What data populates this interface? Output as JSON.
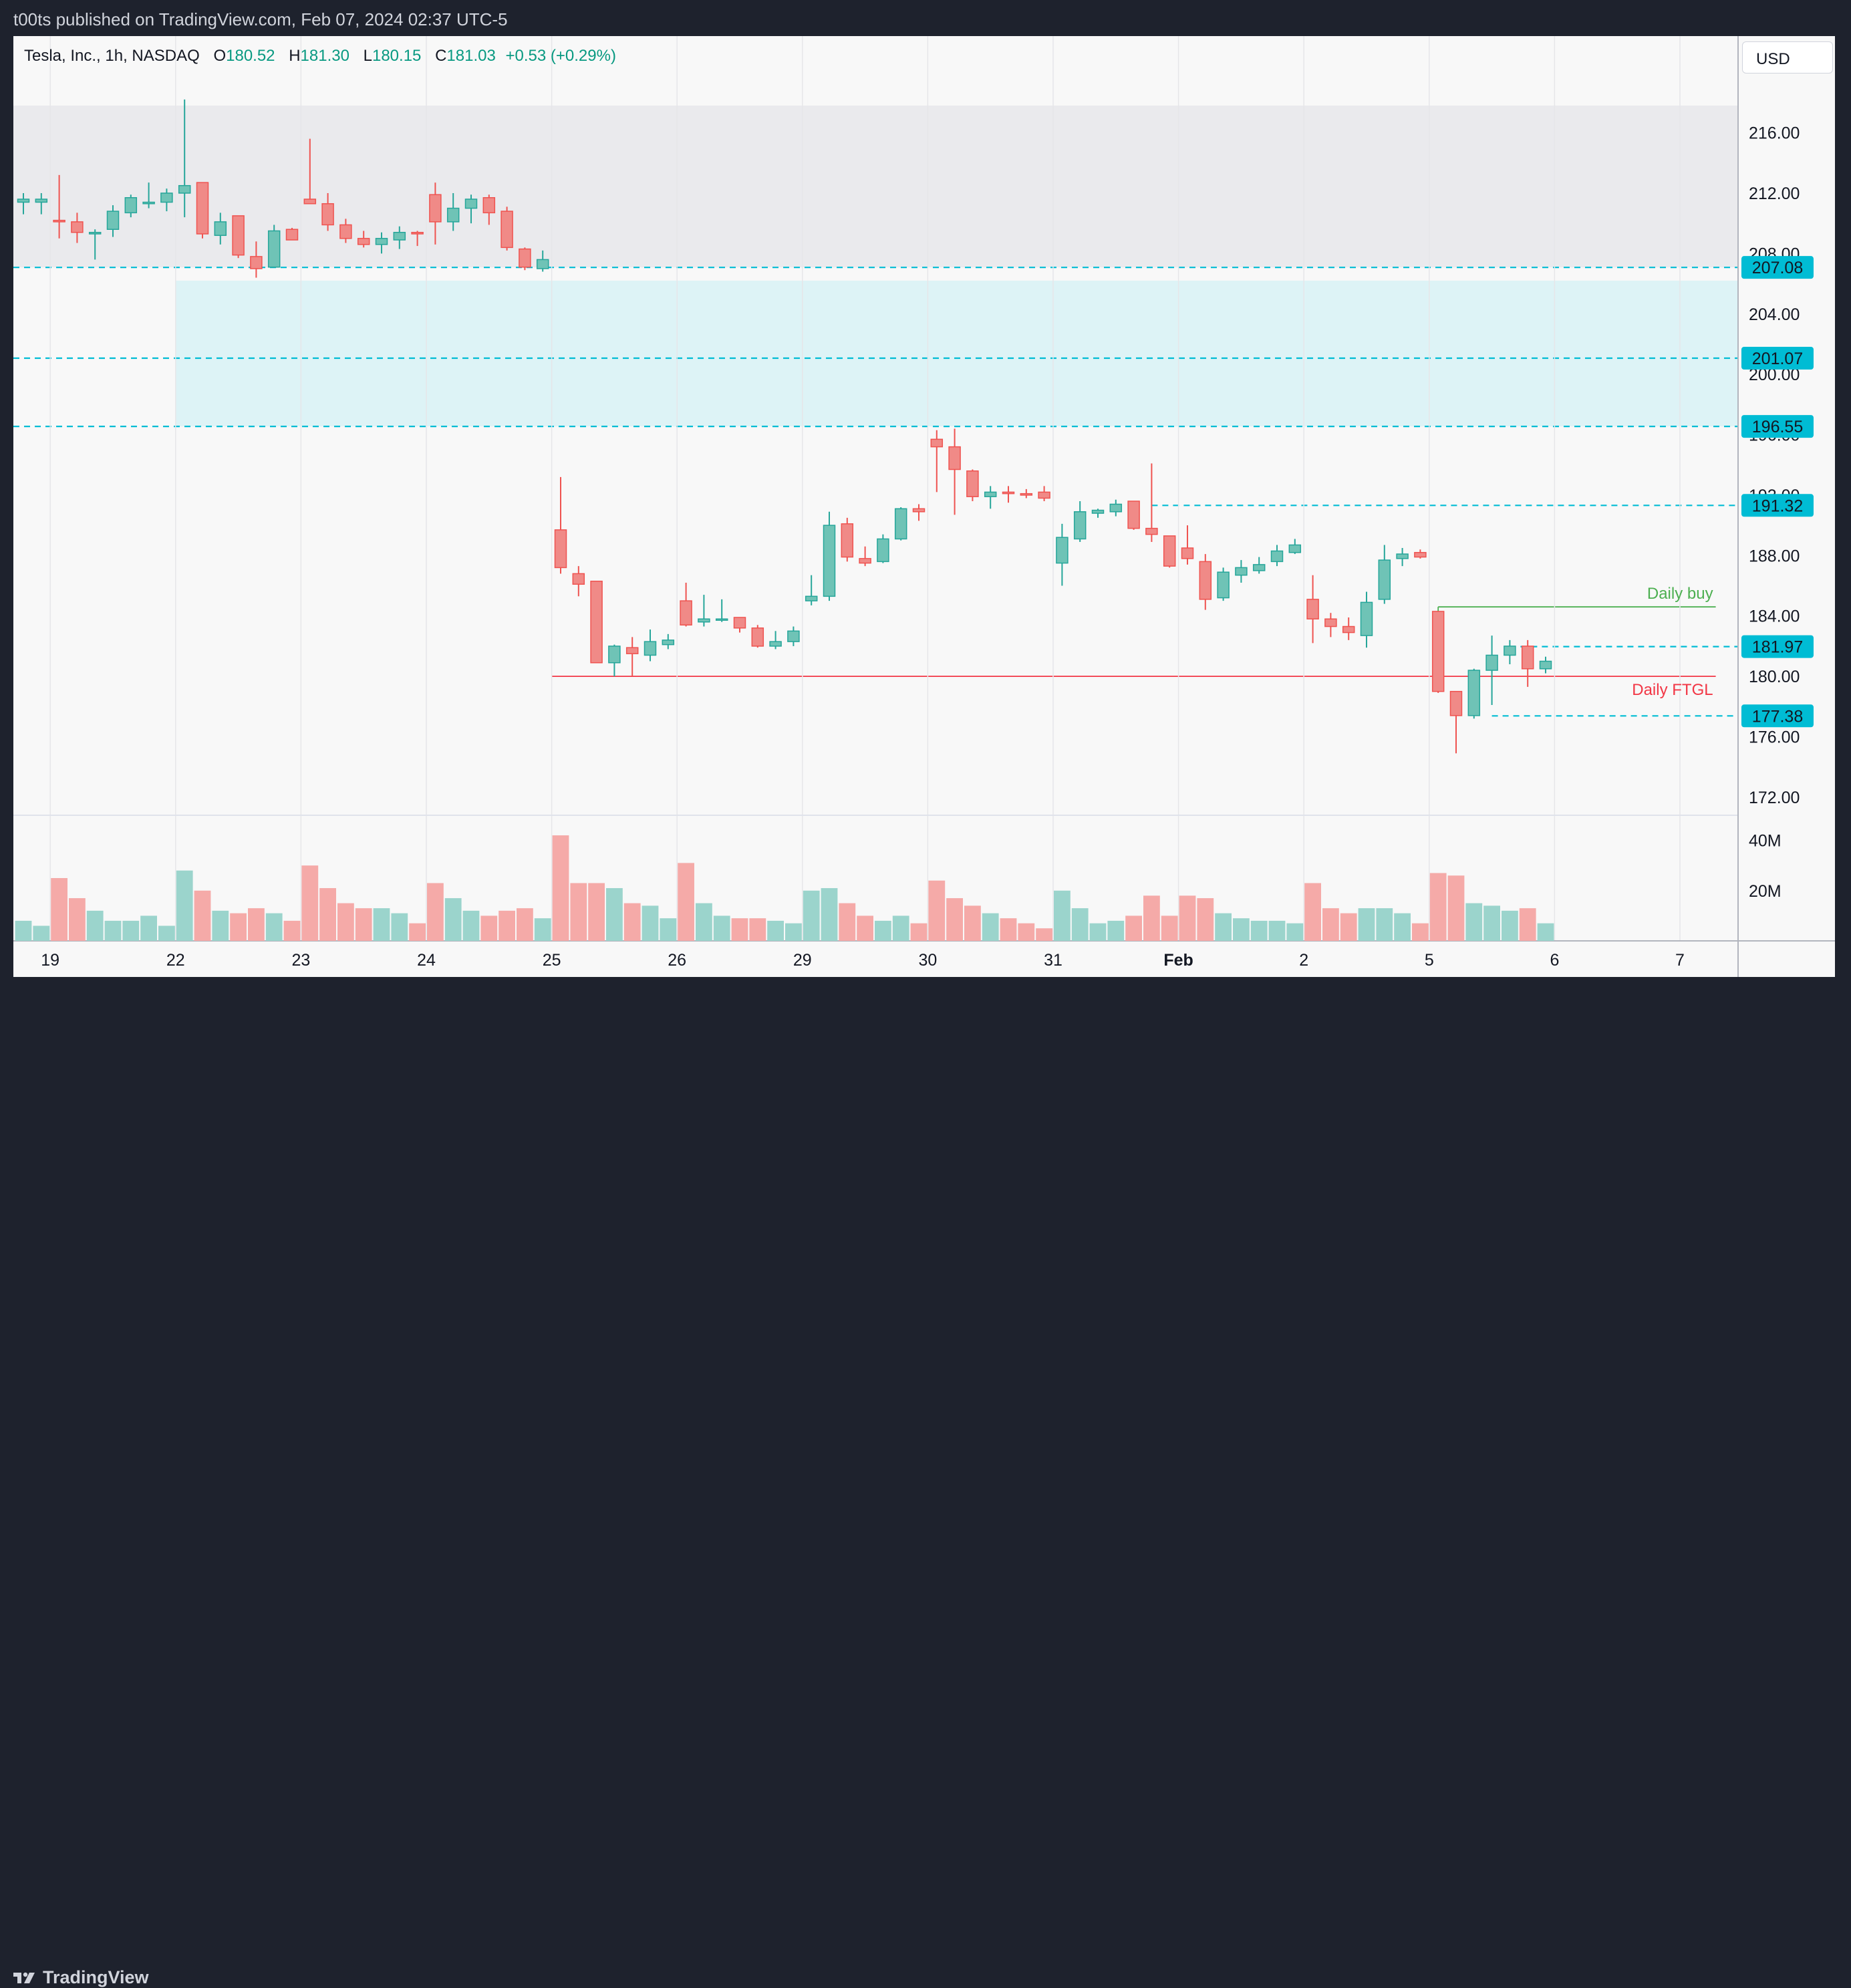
{
  "header": {
    "publisher_line": "t00ts published on TradingView.com, Feb 07, 2024 02:37 UTC-5"
  },
  "legend": {
    "symbol": "Tesla, Inc., 1h, NASDAQ",
    "open_label": "O",
    "open": "180.52",
    "high_label": "H",
    "high": "181.30",
    "low_label": "L",
    "low": "180.15",
    "close_label": "C",
    "close": "181.03",
    "change": "+0.53 (+0.29%)"
  },
  "currency_button": "USD",
  "footer": {
    "brand": "TradingView"
  },
  "colors": {
    "up": "#26a69a",
    "down": "#ef5350",
    "up_fill": "#6fc3b6",
    "down_fill": "#f08a87",
    "level_line": "#00bcd4",
    "zone": "#ddf3f6",
    "resistance_zone": "#eaeaed",
    "buy_line": "#4caf50",
    "ftgl_line": "#f23645"
  },
  "chart_data": {
    "type": "candlestick",
    "interval": "1h",
    "symbol": "TSLA",
    "price_axis": {
      "ticks": [
        "216.00",
        "212.00",
        "208.00",
        "204.00",
        "200.00",
        "196.00",
        "192.00",
        "188.00",
        "184.00",
        "180.00",
        "176.00",
        "172.00"
      ],
      "ylim": [
        170.8,
        222.4
      ]
    },
    "volume_axis": {
      "ticks": [
        "40M",
        "20M"
      ],
      "ylim": [
        0,
        50
      ]
    },
    "x_ticks": [
      {
        "label": "19",
        "bar": 1.5,
        "bold": false
      },
      {
        "label": "22",
        "bar": 8.5,
        "bold": false
      },
      {
        "label": "23",
        "bar": 15.5,
        "bold": false
      },
      {
        "label": "24",
        "bar": 22.5,
        "bold": false
      },
      {
        "label": "25",
        "bar": 29.5,
        "bold": false
      },
      {
        "label": "26",
        "bar": 36.5,
        "bold": false
      },
      {
        "label": "29",
        "bar": 43.5,
        "bold": false
      },
      {
        "label": "30",
        "bar": 50.5,
        "bold": false
      },
      {
        "label": "31",
        "bar": 57.5,
        "bold": false
      },
      {
        "label": "Feb",
        "bar": 64.5,
        "bold": true
      },
      {
        "label": "2",
        "bar": 71.5,
        "bold": false
      },
      {
        "label": "5",
        "bar": 78.5,
        "bold": false
      },
      {
        "label": "6",
        "bar": 85.5,
        "bold": false
      },
      {
        "label": "7",
        "bar": 92.5,
        "bold": false
      }
    ],
    "candles": [
      {
        "o": 211.4,
        "h": 212.0,
        "l": 210.6,
        "c": 211.6,
        "v": 8
      },
      {
        "o": 211.4,
        "h": 212.0,
        "l": 210.6,
        "c": 211.6,
        "v": 6
      },
      {
        "o": 210.2,
        "h": 213.2,
        "l": 209.0,
        "c": 210.1,
        "v": 25
      },
      {
        "o": 210.1,
        "h": 210.7,
        "l": 208.7,
        "c": 209.4,
        "v": 17
      },
      {
        "o": 209.3,
        "h": 209.6,
        "l": 207.6,
        "c": 209.4,
        "v": 12
      },
      {
        "o": 209.6,
        "h": 211.2,
        "l": 209.1,
        "c": 210.8,
        "v": 8
      },
      {
        "o": 210.7,
        "h": 211.9,
        "l": 210.4,
        "c": 211.7,
        "v": 8
      },
      {
        "o": 211.3,
        "h": 212.7,
        "l": 211.0,
        "c": 211.4,
        "v": 10
      },
      {
        "o": 211.4,
        "h": 212.3,
        "l": 210.8,
        "c": 212.0,
        "v": 6
      },
      {
        "o": 212.0,
        "h": 218.2,
        "l": 210.4,
        "c": 212.5,
        "v": 28
      },
      {
        "o": 212.7,
        "h": 212.7,
        "l": 209.0,
        "c": 209.3,
        "v": 20
      },
      {
        "o": 209.2,
        "h": 210.7,
        "l": 208.6,
        "c": 210.1,
        "v": 12
      },
      {
        "o": 210.5,
        "h": 210.5,
        "l": 207.7,
        "c": 207.9,
        "v": 11
      },
      {
        "o": 207.8,
        "h": 208.8,
        "l": 206.4,
        "c": 207.0,
        "v": 13
      },
      {
        "o": 207.1,
        "h": 209.9,
        "l": 207.1,
        "c": 209.5,
        "v": 11
      },
      {
        "o": 209.6,
        "h": 209.7,
        "l": 208.9,
        "c": 208.9,
        "v": 8
      },
      {
        "o": 211.6,
        "h": 215.6,
        "l": 211.3,
        "c": 211.3,
        "v": 30
      },
      {
        "o": 211.3,
        "h": 212.0,
        "l": 209.5,
        "c": 209.9,
        "v": 21
      },
      {
        "o": 209.9,
        "h": 210.3,
        "l": 208.7,
        "c": 209.0,
        "v": 15
      },
      {
        "o": 209.0,
        "h": 209.5,
        "l": 208.4,
        "c": 208.6,
        "v": 13
      },
      {
        "o": 208.6,
        "h": 209.4,
        "l": 208.0,
        "c": 209.0,
        "v": 13
      },
      {
        "o": 208.9,
        "h": 209.8,
        "l": 208.3,
        "c": 209.4,
        "v": 11
      },
      {
        "o": 209.4,
        "h": 209.5,
        "l": 208.5,
        "c": 209.3,
        "v": 7
      },
      {
        "o": 211.9,
        "h": 212.7,
        "l": 208.6,
        "c": 210.1,
        "v": 23
      },
      {
        "o": 210.1,
        "h": 212.0,
        "l": 209.5,
        "c": 211.0,
        "v": 17
      },
      {
        "o": 211.0,
        "h": 211.9,
        "l": 210.0,
        "c": 211.6,
        "v": 12
      },
      {
        "o": 211.7,
        "h": 211.9,
        "l": 209.9,
        "c": 210.7,
        "v": 10
      },
      {
        "o": 210.8,
        "h": 211.1,
        "l": 208.2,
        "c": 208.4,
        "v": 12
      },
      {
        "o": 208.3,
        "h": 208.4,
        "l": 206.9,
        "c": 207.1,
        "v": 13
      },
      {
        "o": 207.0,
        "h": 208.2,
        "l": 206.8,
        "c": 207.6,
        "v": 9
      },
      {
        "o": 189.7,
        "h": 193.2,
        "l": 186.8,
        "c": 187.2,
        "v": 42
      },
      {
        "o": 186.8,
        "h": 187.3,
        "l": 185.3,
        "c": 186.1,
        "v": 23
      },
      {
        "o": 186.3,
        "h": 186.3,
        "l": 180.9,
        "c": 180.9,
        "v": 23
      },
      {
        "o": 180.9,
        "h": 182.1,
        "l": 180.0,
        "c": 182.0,
        "v": 21
      },
      {
        "o": 181.9,
        "h": 182.6,
        "l": 180.0,
        "c": 181.5,
        "v": 15
      },
      {
        "o": 181.4,
        "h": 183.1,
        "l": 181.0,
        "c": 182.3,
        "v": 14
      },
      {
        "o": 182.1,
        "h": 182.8,
        "l": 181.8,
        "c": 182.4,
        "v": 9
      },
      {
        "o": 185.0,
        "h": 186.2,
        "l": 183.3,
        "c": 183.4,
        "v": 31
      },
      {
        "o": 183.6,
        "h": 185.4,
        "l": 183.3,
        "c": 183.8,
        "v": 15
      },
      {
        "o": 183.8,
        "h": 185.1,
        "l": 183.6,
        "c": 183.8,
        "v": 10
      },
      {
        "o": 183.9,
        "h": 183.9,
        "l": 182.9,
        "c": 183.2,
        "v": 9
      },
      {
        "o": 183.2,
        "h": 183.4,
        "l": 181.9,
        "c": 182.0,
        "v": 9
      },
      {
        "o": 182.0,
        "h": 183.0,
        "l": 181.8,
        "c": 182.3,
        "v": 8
      },
      {
        "o": 182.3,
        "h": 183.3,
        "l": 182.0,
        "c": 183.0,
        "v": 7
      },
      {
        "o": 185.0,
        "h": 186.7,
        "l": 184.7,
        "c": 185.3,
        "v": 20
      },
      {
        "o": 185.3,
        "h": 190.9,
        "l": 185.0,
        "c": 190.0,
        "v": 21
      },
      {
        "o": 190.1,
        "h": 190.5,
        "l": 187.6,
        "c": 187.9,
        "v": 15
      },
      {
        "o": 187.8,
        "h": 188.6,
        "l": 187.3,
        "c": 187.5,
        "v": 10
      },
      {
        "o": 187.6,
        "h": 189.4,
        "l": 187.5,
        "c": 189.1,
        "v": 8
      },
      {
        "o": 189.1,
        "h": 191.2,
        "l": 189.0,
        "c": 191.1,
        "v": 10
      },
      {
        "o": 191.1,
        "h": 191.4,
        "l": 190.3,
        "c": 190.9,
        "v": 7
      },
      {
        "o": 195.7,
        "h": 196.3,
        "l": 192.2,
        "c": 195.2,
        "v": 24
      },
      {
        "o": 195.2,
        "h": 196.4,
        "l": 190.7,
        "c": 193.7,
        "v": 17
      },
      {
        "o": 193.6,
        "h": 193.7,
        "l": 191.6,
        "c": 191.9,
        "v": 14
      },
      {
        "o": 191.9,
        "h": 192.6,
        "l": 191.1,
        "c": 192.2,
        "v": 11
      },
      {
        "o": 192.2,
        "h": 192.6,
        "l": 191.5,
        "c": 192.1,
        "v": 9
      },
      {
        "o": 192.1,
        "h": 192.4,
        "l": 191.8,
        "c": 192.0,
        "v": 7
      },
      {
        "o": 192.2,
        "h": 192.6,
        "l": 191.6,
        "c": 191.8,
        "v": 5
      },
      {
        "o": 187.5,
        "h": 190.1,
        "l": 186.0,
        "c": 189.2,
        "v": 20
      },
      {
        "o": 189.1,
        "h": 191.6,
        "l": 188.9,
        "c": 190.9,
        "v": 13
      },
      {
        "o": 190.8,
        "h": 191.1,
        "l": 190.5,
        "c": 191.0,
        "v": 7
      },
      {
        "o": 190.9,
        "h": 191.7,
        "l": 190.6,
        "c": 191.4,
        "v": 8
      },
      {
        "o": 191.6,
        "h": 191.6,
        "l": 189.7,
        "c": 189.8,
        "v": 10
      },
      {
        "o": 189.8,
        "h": 194.1,
        "l": 188.9,
        "c": 189.4,
        "v": 18
      },
      {
        "o": 189.3,
        "h": 189.3,
        "l": 187.2,
        "c": 187.3,
        "v": 10
      },
      {
        "o": 188.5,
        "h": 190.0,
        "l": 187.4,
        "c": 187.8,
        "v": 18
      },
      {
        "o": 187.6,
        "h": 188.1,
        "l": 184.4,
        "c": 185.1,
        "v": 17
      },
      {
        "o": 185.2,
        "h": 187.2,
        "l": 185.0,
        "c": 186.9,
        "v": 11
      },
      {
        "o": 186.7,
        "h": 187.7,
        "l": 186.2,
        "c": 187.2,
        "v": 9
      },
      {
        "o": 187.0,
        "h": 187.9,
        "l": 186.8,
        "c": 187.4,
        "v": 8
      },
      {
        "o": 187.6,
        "h": 188.7,
        "l": 187.3,
        "c": 188.3,
        "v": 8
      },
      {
        "o": 188.2,
        "h": 189.1,
        "l": 188.1,
        "c": 188.7,
        "v": 7
      },
      {
        "o": 185.1,
        "h": 186.7,
        "l": 182.2,
        "c": 183.8,
        "v": 23
      },
      {
        "o": 183.8,
        "h": 184.2,
        "l": 182.6,
        "c": 183.3,
        "v": 13
      },
      {
        "o": 183.3,
        "h": 183.9,
        "l": 182.4,
        "c": 182.9,
        "v": 11
      },
      {
        "o": 182.7,
        "h": 185.6,
        "l": 181.9,
        "c": 184.9,
        "v": 13
      },
      {
        "o": 185.1,
        "h": 188.7,
        "l": 184.8,
        "c": 187.7,
        "v": 13
      },
      {
        "o": 187.8,
        "h": 188.5,
        "l": 187.3,
        "c": 188.1,
        "v": 11
      },
      {
        "o": 188.2,
        "h": 188.4,
        "l": 187.8,
        "c": 187.9,
        "v": 7
      },
      {
        "o": 184.3,
        "h": 184.3,
        "l": 178.9,
        "c": 179.0,
        "v": 27
      },
      {
        "o": 179.0,
        "h": 179.0,
        "l": 174.9,
        "c": 177.4,
        "v": 26
      },
      {
        "o": 177.4,
        "h": 180.5,
        "l": 177.2,
        "c": 180.4,
        "v": 15
      },
      {
        "o": 180.4,
        "h": 182.7,
        "l": 178.1,
        "c": 181.4,
        "v": 14
      },
      {
        "o": 181.4,
        "h": 182.4,
        "l": 180.8,
        "c": 182.0,
        "v": 12
      },
      {
        "o": 182.0,
        "h": 182.4,
        "l": 179.3,
        "c": 180.5,
        "v": 13
      },
      {
        "o": 180.5,
        "h": 181.3,
        "l": 180.2,
        "c": 181.0,
        "v": 7
      }
    ],
    "zones": [
      {
        "name": "upper-range",
        "from_bar": -2,
        "to_bar": 97,
        "low": 207.08,
        "high": 217.8,
        "color": "#eaeaed"
      },
      {
        "name": "gap-zone",
        "from_bar": 8.5,
        "to_bar": 97,
        "low": 196.55,
        "high": 206.2,
        "color": "#ddf3f6"
      }
    ],
    "levels": [
      {
        "price": 207.08,
        "label": "207.08",
        "from_bar": -2
      },
      {
        "price": 201.07,
        "label": "201.07",
        "from_bar": -2
      },
      {
        "price": 196.55,
        "label": "196.55",
        "from_bar": -2
      },
      {
        "price": 191.32,
        "label": "191.32",
        "from_bar": 63
      },
      {
        "price": 181.97,
        "label": "181.97",
        "from_bar": 83
      },
      {
        "price": 177.38,
        "label": "177.38",
        "from_bar": 82
      }
    ],
    "annotations": [
      {
        "name": "daily-buy",
        "text": "Daily buy",
        "price": 184.6,
        "from_bar": 79,
        "to_bar": 94.5,
        "color": "#4caf50",
        "text_color": "#4caf50"
      },
      {
        "name": "daily-ftgl",
        "text": "Daily FTGL",
        "price": 180.0,
        "from_bar": 29.5,
        "to_bar": 94.5,
        "color": "#f23645",
        "text_color": "#f23645"
      }
    ]
  }
}
